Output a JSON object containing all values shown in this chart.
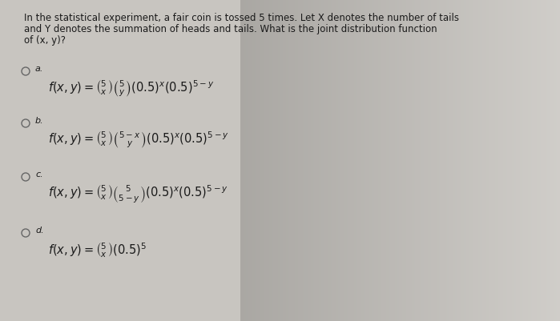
{
  "bg_color": "#c8c5c0",
  "text_color": "#1a1a1a",
  "title_line1": "In the statistical experiment, a fair coin is tossed 5 times. Let X denotes the number of tails",
  "title_line2": "and Y denotes the summation of heads and tails. What is the joint distribution function",
  "title_line3": "of (x, y)?",
  "option_a_label": "a.",
  "option_b_label": "b.",
  "option_c_label": "c.",
  "option_d_label": "d.",
  "radio_color": "#666666",
  "formula_color": "#1a1a1a",
  "formula_a": "$f(x,y) = \\binom{5}{x}\\binom{5}{y}(0.5)^x(0.5)^{5-y}$",
  "formula_b": "$f(x,y) = \\binom{5}{x}\\binom{5-x}{y}(0.5)^x(0.5)^{5-y}$",
  "formula_c": "$f(x,y) = \\binom{5}{x}\\binom{5}{5-y}(0.5)^x(0.5)^{5-y}$",
  "formula_d": "$f(x,y) = \\binom{5}{x}(0.5)^5$"
}
